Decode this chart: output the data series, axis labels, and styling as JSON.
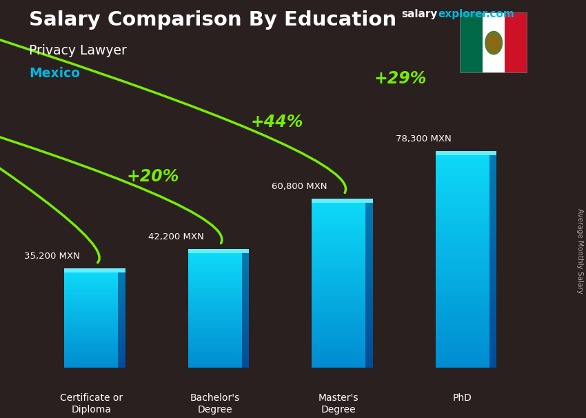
{
  "title_main": "Salary Comparison By Education",
  "title_sub": "Privacy Lawyer",
  "title_country": "Mexico",
  "watermark_salary": "salary",
  "watermark_rest": "explorer.com",
  "ylabel_rotated": "Average Monthly Salary",
  "categories": [
    "Certificate or\nDiploma",
    "Bachelor's\nDegree",
    "Master's\nDegree",
    "PhD"
  ],
  "values": [
    35200,
    42200,
    60800,
    78300
  ],
  "value_labels": [
    "35,200 MXN",
    "42,200 MXN",
    "60,800 MXN",
    "78,300 MXN"
  ],
  "pct_labels": [
    "+20%",
    "+44%",
    "+29%"
  ],
  "bar_face_color": "#00c8f0",
  "bar_side_color": "#0080b0",
  "bar_top_color": "#55e0ff",
  "bg_color": "#2a2020",
  "text_color_white": "#ffffff",
  "text_color_cyan": "#00b8e0",
  "text_color_green": "#77ee00",
  "arrow_color": "#77ee00",
  "figsize": [
    8.5,
    6.06
  ],
  "dpi": 100
}
